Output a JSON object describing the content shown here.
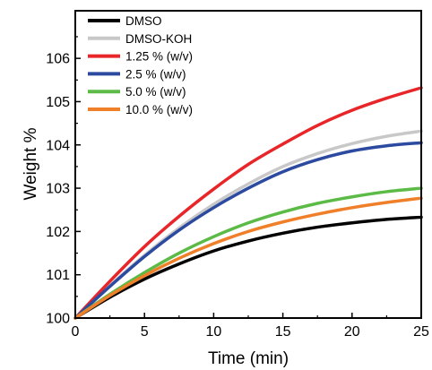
{
  "chart_data": {
    "type": "line",
    "xlabel": "Time (min)",
    "ylabel": "Weight %",
    "xlim": [
      0,
      25
    ],
    "ylim": [
      100,
      107.1
    ],
    "x_ticks": [
      0,
      5,
      10,
      15,
      20,
      25
    ],
    "y_ticks": [
      100,
      101,
      102,
      103,
      104,
      105,
      106
    ],
    "grid": false,
    "legend_position": "top-left",
    "x": [
      0,
      2.5,
      5,
      7.5,
      10,
      12.5,
      15,
      17.5,
      20,
      22.5,
      25
    ],
    "series": [
      {
        "name": "DMSO",
        "color": "#000000",
        "values": [
          100.0,
          100.48,
          100.9,
          101.25,
          101.55,
          101.78,
          101.96,
          102.1,
          102.2,
          102.28,
          102.33
        ]
      },
      {
        "name": "DMSO-KOH",
        "color": "#c8c8c8",
        "values": [
          100.0,
          100.75,
          101.45,
          102.08,
          102.63,
          103.1,
          103.5,
          103.8,
          104.03,
          104.2,
          104.32
        ]
      },
      {
        "name": "1.25 % (w/v)",
        "color": "#e8262a",
        "values": [
          100.0,
          100.85,
          101.65,
          102.35,
          102.98,
          103.55,
          104.02,
          104.45,
          104.8,
          105.08,
          105.32
        ]
      },
      {
        "name": "2.5 % (w/v)",
        "color": "#2b4aa0",
        "values": [
          100.0,
          100.73,
          101.42,
          102.03,
          102.55,
          103.0,
          103.38,
          103.66,
          103.86,
          103.98,
          104.05
        ]
      },
      {
        "name": "5.0 % (w/v)",
        "color": "#5bbb46",
        "values": [
          100.0,
          100.55,
          101.05,
          101.5,
          101.88,
          102.2,
          102.45,
          102.65,
          102.8,
          102.92,
          103.0
        ]
      },
      {
        "name": "10.0 % (w/v)",
        "color": "#f07f2a",
        "values": [
          100.0,
          100.52,
          100.98,
          101.38,
          101.72,
          102.0,
          102.22,
          102.4,
          102.55,
          102.67,
          102.77
        ]
      }
    ]
  }
}
